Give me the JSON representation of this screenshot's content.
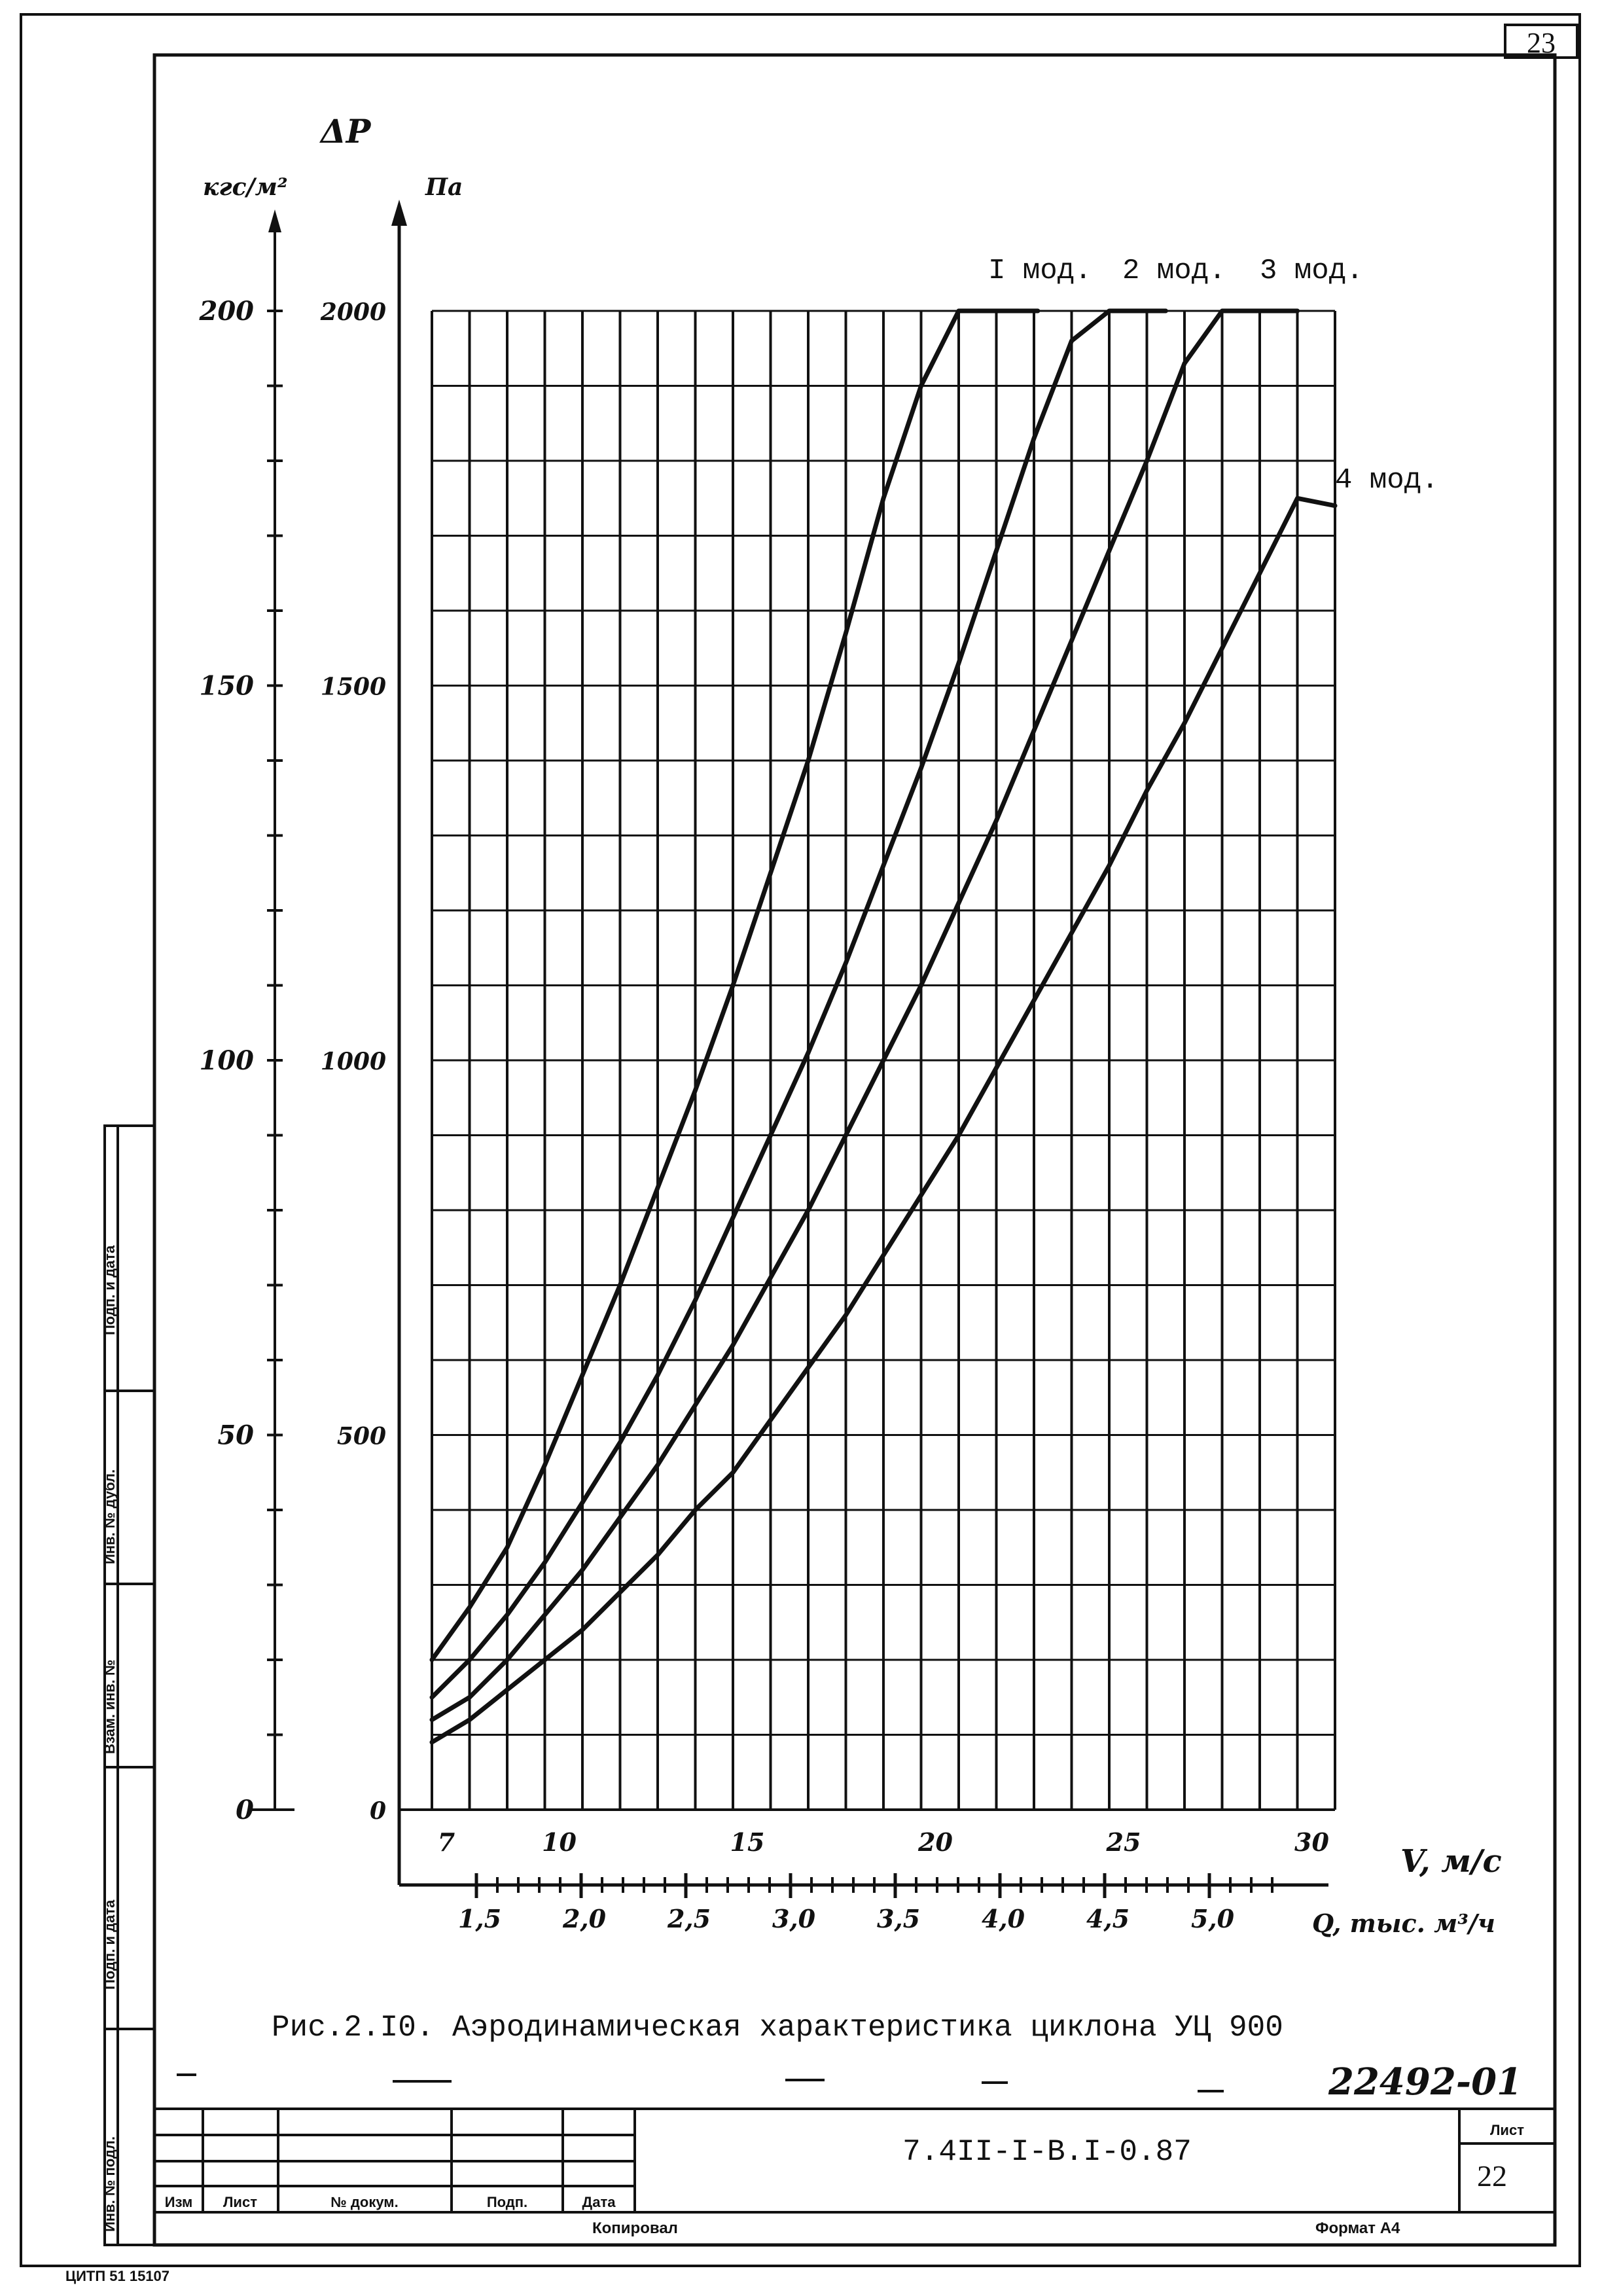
{
  "page": {
    "sheet_corner_number": "23",
    "figure_caption": "Рис.2.I0. Аэродинамическая характеристика циклона УЦ 900",
    "handwritten_code": "22492-01",
    "bottom_note": "ЦИТП  51  15107"
  },
  "title_block": {
    "document_code": "7.4II-I-B.I-0.87",
    "sheet_label": "Лист",
    "sheet_number": "22",
    "col_izm": "Изм",
    "col_list": "Лист",
    "col_doc": "№ докум.",
    "col_sign": "Подп.",
    "col_date": "Дата",
    "copied": "Копировал",
    "format": "Формат А4"
  },
  "side_stamp": [
    "Подп. и дата",
    "Инв. № дубл.",
    "Взам. инв. №",
    "Подп. и дата",
    "Инв. № подл."
  ],
  "chart_data": {
    "type": "line",
    "title": "Рис.2.I0. Аэродинамическая характеристика циклона УЦ 900",
    "y_axis_symbol": "ΔP",
    "y_left_unit": "кгс/м²",
    "y_right_unit": "Па",
    "xlabel": "V, м/с",
    "x2label": "Q, тыс. м³/ч",
    "xlim": [
      7,
      31
    ],
    "ylim": [
      0,
      2000
    ],
    "y_left_ticks": [
      "0",
      "50",
      "100",
      "150",
      "200"
    ],
    "y_right_ticks": [
      "0",
      "500",
      "1000",
      "1500",
      "2000"
    ],
    "x_ticks": [
      "7",
      "10",
      "15",
      "20",
      "25",
      "30"
    ],
    "x2_ticks": [
      "1,5",
      "2,0",
      "2,5",
      "3,0",
      "3,5",
      "4,0",
      "4,5",
      "5,0"
    ],
    "grid": true,
    "series": [
      {
        "name": "I мод.",
        "x": [
          7,
          8,
          9,
          10,
          11,
          12,
          13,
          14,
          15,
          16,
          17,
          18,
          19,
          20,
          21,
          22,
          23.1
        ],
        "y": [
          200,
          270,
          350,
          460,
          580,
          700,
          830,
          960,
          1100,
          1250,
          1400,
          1570,
          1750,
          1900,
          2000,
          2000,
          2000
        ]
      },
      {
        "name": "2 мод.",
        "x": [
          7,
          8,
          9,
          10,
          11,
          12,
          13,
          14,
          15,
          16,
          17,
          18,
          19,
          20,
          21,
          22,
          23,
          24,
          25,
          26,
          26.5
        ],
        "y": [
          150,
          200,
          260,
          330,
          410,
          490,
          580,
          680,
          790,
          900,
          1010,
          1130,
          1260,
          1390,
          1530,
          1680,
          1830,
          1960,
          2000,
          2000,
          2000
        ]
      },
      {
        "name": "3 мод.",
        "x": [
          7,
          8,
          9,
          10,
          11,
          12,
          13,
          14,
          15,
          16,
          17,
          18,
          19,
          20,
          21,
          22,
          23,
          24,
          25,
          26,
          27,
          28,
          29,
          30
        ],
        "y": [
          120,
          150,
          200,
          260,
          320,
          390,
          460,
          540,
          620,
          710,
          800,
          900,
          1000,
          1100,
          1210,
          1320,
          1440,
          1560,
          1680,
          1800,
          1930,
          2000,
          2000,
          2000
        ]
      },
      {
        "name": "4 мод.",
        "x": [
          7,
          8,
          9,
          10,
          11,
          12,
          13,
          14,
          15,
          16,
          17,
          18,
          19,
          20,
          21,
          22,
          23,
          24,
          25,
          26,
          27,
          28,
          29,
          30,
          31
        ],
        "y": [
          90,
          120,
          160,
          200,
          240,
          290,
          340,
          400,
          450,
          520,
          590,
          660,
          740,
          820,
          900,
          990,
          1080,
          1170,
          1260,
          1360,
          1450,
          1550,
          1650,
          1750,
          1740
        ]
      }
    ]
  }
}
